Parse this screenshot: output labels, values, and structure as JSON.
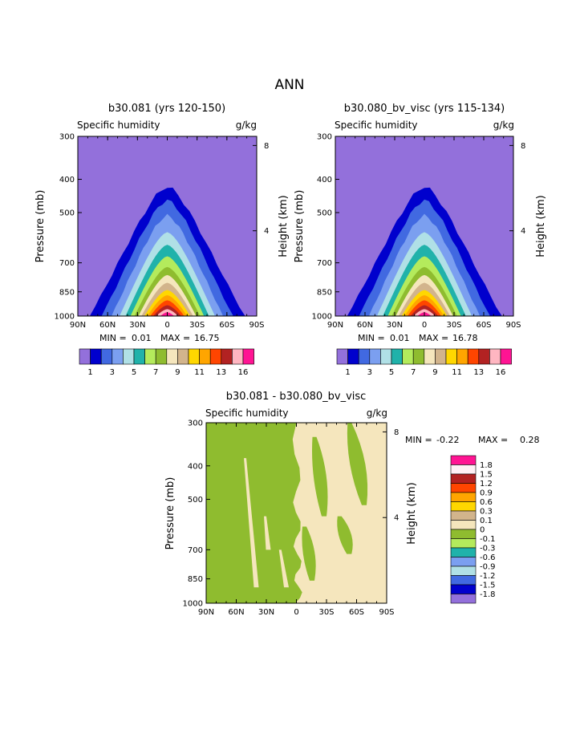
{
  "page": {
    "title": "ANN"
  },
  "colors": {
    "bg": "#ffffff",
    "full_palette": [
      "#9370db",
      "#0000cd",
      "#4169e1",
      "#7b9ff0",
      "#b0e0e6",
      "#20b2aa",
      "#b4eb5c",
      "#8fbc2f",
      "#f5e6bd",
      "#d2b48c",
      "#ffd700",
      "#ffa500",
      "#ff4500",
      "#b22222",
      "#ffb6c1",
      "#ff1493"
    ],
    "diff_palette": [
      "#ff1493",
      "#fff0f5",
      "#b22222",
      "#ff4500",
      "#ffa500",
      "#ffd700",
      "#d2b48c",
      "#f5e6bd",
      "#8fbc2f",
      "#b4eb5c",
      "#20b2aa",
      "#7b9ff0",
      "#b0e0e6",
      "#4169e1",
      "#0000cd",
      "#9370db"
    ]
  },
  "chart_data": [
    {
      "type": "contour",
      "title": "b30.081 (yrs 120-150)",
      "subtitle_left": "Specific humidity",
      "subtitle_right": "g/kg",
      "xlabel": "",
      "ylabel": "Pressure (mb)",
      "ylabel_right": "Height (km)",
      "x_ticks": [
        "90N",
        "60N",
        "30N",
        "0",
        "30S",
        "60S",
        "90S"
      ],
      "y_ticks": [
        300,
        400,
        500,
        700,
        850,
        1000
      ],
      "y_right_ticks": [
        8,
        4
      ],
      "ylim": [
        1000,
        300
      ],
      "min_label": "MIN =",
      "min_value": "0.01",
      "max_label": "MAX =",
      "max_value": "16.75",
      "colorbar_labels": [
        "1",
        "3",
        "5",
        "7",
        "9",
        "11",
        "13",
        "16"
      ],
      "levels": [
        0,
        0.5,
        1,
        2,
        3,
        4,
        5,
        6,
        7,
        8,
        9,
        10,
        11,
        12,
        13,
        14,
        15,
        16
      ],
      "contour_tops_hpa": [
        null,
        420,
        460,
        510,
        570,
        620,
        670,
        720,
        760,
        800,
        840,
        870,
        900,
        930,
        955,
        975
      ],
      "contour_half_width_deg": [
        null,
        78,
        66,
        56,
        48,
        42,
        37,
        33,
        29,
        26,
        23,
        20,
        17,
        14,
        11,
        7
      ]
    },
    {
      "type": "contour",
      "title": "b30.080_bv_visc (yrs 115-134)",
      "subtitle_left": "Specific humidity",
      "subtitle_right": "g/kg",
      "xlabel": "",
      "ylabel": "Pressure (mb)",
      "ylabel_right": "Height (km)",
      "x_ticks": [
        "90N",
        "60N",
        "30N",
        "0",
        "30S",
        "60S",
        "90S"
      ],
      "y_ticks": [
        300,
        400,
        500,
        700,
        850,
        1000
      ],
      "y_right_ticks": [
        8,
        4
      ],
      "ylim": [
        1000,
        300
      ],
      "min_label": "MIN =",
      "min_value": "0.01",
      "max_label": "MAX =",
      "max_value": "16.78",
      "colorbar_labels": [
        "1",
        "3",
        "5",
        "7",
        "9",
        "11",
        "13",
        "16"
      ],
      "levels": [
        0,
        0.5,
        1,
        2,
        3,
        4,
        5,
        6,
        7,
        8,
        9,
        10,
        11,
        12,
        13,
        14,
        15,
        16
      ],
      "contour_tops_hpa": [
        null,
        420,
        460,
        510,
        570,
        620,
        670,
        720,
        760,
        800,
        840,
        870,
        900,
        930,
        955,
        975
      ],
      "contour_half_width_deg": [
        null,
        78,
        66,
        56,
        48,
        42,
        37,
        33,
        29,
        26,
        23,
        20,
        17,
        14,
        11,
        7
      ]
    },
    {
      "type": "contour",
      "title": "b30.081 - b30.080_bv_visc",
      "subtitle_left": "Specific humidity",
      "subtitle_right": "g/kg",
      "xlabel": "",
      "ylabel": "Pressure (mb)",
      "ylabel_right": "Height (km)",
      "x_ticks": [
        "90N",
        "60N",
        "30N",
        "0",
        "30S",
        "60S",
        "90S"
      ],
      "y_ticks": [
        300,
        400,
        500,
        700,
        850,
        1000
      ],
      "y_right_ticks": [
        8,
        4
      ],
      "ylim": [
        1000,
        300
      ],
      "min_label": "MIN =",
      "min_value": "-0.22",
      "max_label": "MAX =",
      "max_value": "0.28",
      "legend_labels": [
        "1.8",
        "1.5",
        "1.2",
        "0.9",
        "0.6",
        "0.3",
        "0.1",
        "0",
        "-0.1",
        "-0.3",
        "-0.6",
        "-0.9",
        "-1.2",
        "-1.5",
        "-1.8"
      ],
      "regions": [
        {
          "label": "-0.1 to 0",
          "lat_range": [
            "90N",
            "0"
          ]
        },
        {
          "label": "0 to 0.1",
          "lat_range": [
            "0",
            "90S"
          ]
        }
      ]
    }
  ]
}
